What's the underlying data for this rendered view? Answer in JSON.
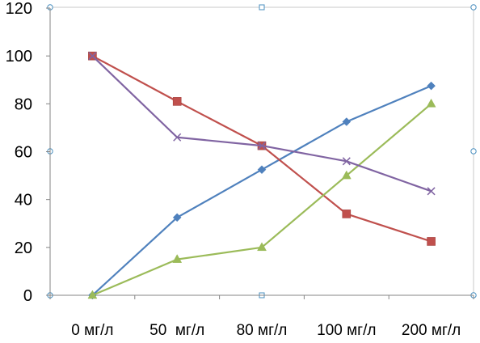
{
  "chart_data": {
    "type": "line",
    "categories": [
      "0 мг/л",
      "50  мг/л",
      "80 мг/л",
      "100 мг/л",
      "200 мг/л"
    ],
    "ylim": [
      0,
      120
    ],
    "yticks": [
      0,
      20,
      40,
      60,
      80,
      100,
      120
    ],
    "grid": false,
    "legend": "none",
    "series": [
      {
        "values": [
          0,
          32.5,
          52.5,
          72.5,
          87.5
        ],
        "color": "#4F81BD",
        "marker": "diamond"
      },
      {
        "values": [
          100,
          81,
          62.5,
          34,
          22.5
        ],
        "color": "#C0504D",
        "marker": "square"
      },
      {
        "values": [
          0,
          15,
          20,
          50,
          80
        ],
        "color": "#9BBB59",
        "marker": "triangle"
      },
      {
        "values": [
          100,
          66,
          62.5,
          56,
          43.5
        ],
        "color": "#8064A2",
        "marker": "x"
      }
    ]
  }
}
